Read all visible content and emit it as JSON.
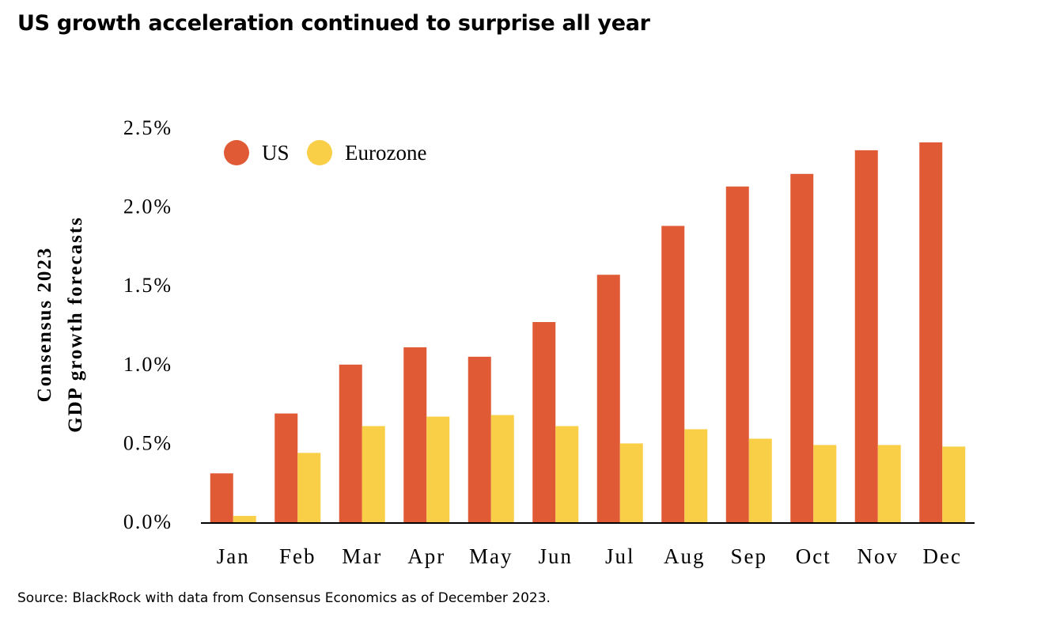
{
  "title": "US growth acceleration continued to surprise all year",
  "source": "Source: BlackRock with data from Consensus Economics as of December 2023.",
  "colors": {
    "us": "#E05A35",
    "eurozone": "#F8CF47",
    "axis": "#000000",
    "text": "#000000"
  },
  "chart_data": {
    "type": "bar",
    "title": "US growth acceleration continued to surprise all year",
    "ylabel_lines": [
      "Consensus 2023",
      "GDP growth forecasts"
    ],
    "xlabel": "",
    "categories": [
      "Jan",
      "Feb",
      "Mar",
      "Apr",
      "May",
      "Jun",
      "Jul",
      "Aug",
      "Sep",
      "Oct",
      "Nov",
      "Dec"
    ],
    "series": [
      {
        "name": "US",
        "color": "#E05A35",
        "values": [
          0.31,
          0.69,
          1.0,
          1.11,
          1.05,
          1.27,
          1.57,
          1.88,
          2.13,
          2.21,
          2.36,
          2.41
        ]
      },
      {
        "name": "Eurozone",
        "color": "#F8CF47",
        "values": [
          0.04,
          0.44,
          0.61,
          0.67,
          0.68,
          0.61,
          0.5,
          0.59,
          0.53,
          0.49,
          0.49,
          0.48
        ]
      }
    ],
    "ylim": [
      0,
      2.5
    ],
    "yticks": [
      0,
      0.5,
      1.0,
      1.5,
      2.0,
      2.5
    ],
    "ytick_labels": [
      "0.0%",
      "0.5%",
      "1.0%",
      "1.5%",
      "2.0%",
      "2.5%"
    ],
    "legend": {
      "position": "top-left",
      "entries": [
        "US",
        "Eurozone"
      ]
    },
    "grid": false
  }
}
